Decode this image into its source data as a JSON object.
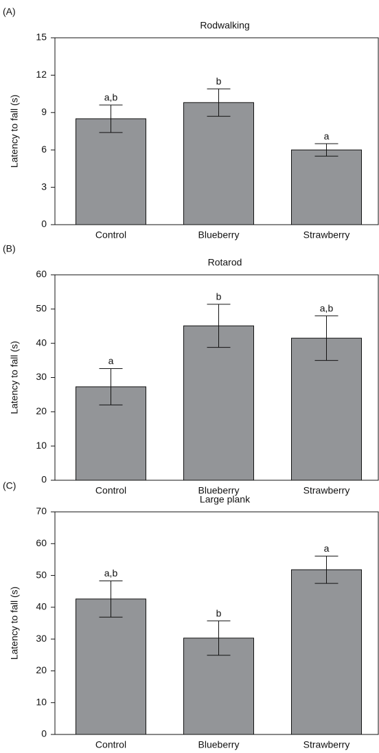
{
  "chart_data": [
    {
      "type": "bar",
      "panel_label": "(A)",
      "title": "Rodwalking",
      "y_label": "Latency to fall (s)",
      "categories": [
        "Control",
        "Blueberry",
        "Strawberry"
      ],
      "values": [
        8.5,
        9.8,
        6.0
      ],
      "errors": [
        1.1,
        1.1,
        0.5
      ],
      "letters": [
        "a,b",
        "b",
        "a"
      ],
      "color": "#939598",
      "ylim": [
        0,
        15
      ],
      "yticks": [
        0,
        3,
        6,
        9,
        12,
        15
      ]
    },
    {
      "type": "bar",
      "panel_label": "(B)",
      "title": "Rotarod",
      "y_label": "Latency to fall (s)",
      "categories": [
        "Control",
        "Blueberry",
        "Strawberry"
      ],
      "values": [
        27.3,
        45.1,
        41.5
      ],
      "errors": [
        5.3,
        6.3,
        6.5
      ],
      "letters": [
        "a",
        "b",
        "a,b"
      ],
      "color": "#939598",
      "ylim": [
        0,
        60
      ],
      "yticks": [
        0,
        10,
        20,
        30,
        40,
        50,
        60
      ]
    },
    {
      "type": "bar",
      "panel_label": "(C)",
      "title": "Large plank",
      "y_label": "Latency to fall (s)",
      "categories": [
        "Control",
        "Blueberry",
        "Strawberry"
      ],
      "values": [
        42.6,
        30.3,
        51.8
      ],
      "errors": [
        5.7,
        5.4,
        4.3
      ],
      "letters": [
        "a,b",
        "b",
        "a"
      ],
      "color": "#939598",
      "ylim": [
        0,
        70
      ],
      "yticks": [
        0,
        10,
        20,
        30,
        40,
        50,
        60,
        70
      ]
    }
  ]
}
